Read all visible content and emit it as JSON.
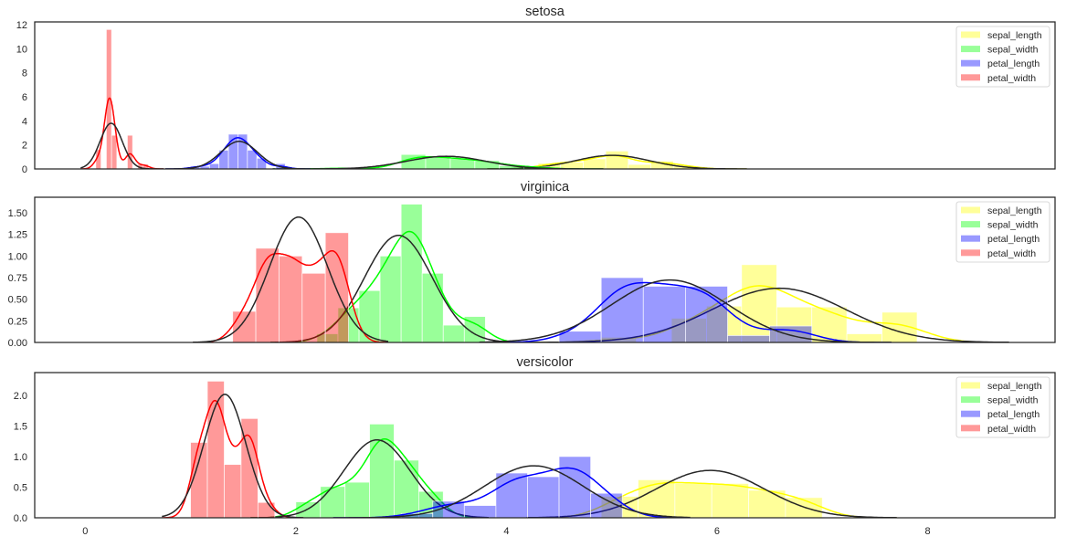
{
  "chart_data": [
    {
      "type": "bar",
      "title": "setosa",
      "xlim": [
        -0.48,
        9.21
      ],
      "ylim": [
        0,
        12.23
      ],
      "yticks": [
        0,
        2,
        4,
        6,
        8,
        10,
        12
      ],
      "ytick_labels": [
        "0",
        "2",
        "4",
        "6",
        "8",
        "10",
        "12"
      ],
      "xticks": [],
      "xtick_labels": [],
      "legend": "top-right",
      "grid": false,
      "series": [
        {
          "name": "sepal_length",
          "color": "#ffff00",
          "bin_edges": [
            4.3,
            4.514,
            4.729,
            4.943,
            5.157,
            5.371,
            5.586,
            5.8
          ],
          "density": [
            0.47,
            0.56,
            0.84,
            1.49,
            0.37,
            0.65,
            0.28
          ],
          "fit_mean": 5.006,
          "fit_std": 0.352
        },
        {
          "name": "sepal_width",
          "color": "#00ff00",
          "bin_edges": [
            2.3,
            2.533,
            2.767,
            3.0,
            3.233,
            3.467,
            3.7,
            3.933,
            4.167,
            4.4
          ],
          "density": [
            0.09,
            0,
            0.09,
            1.2,
            1.03,
            0.86,
            0.69,
            0.26,
            0.17
          ],
          "fit_mean": 3.428,
          "fit_std": 0.379
        },
        {
          "name": "petal_length",
          "color": "#0000ff",
          "bin_edges": [
            1.0,
            1.09,
            1.18,
            1.27,
            1.36,
            1.45,
            1.54,
            1.63,
            1.72,
            1.81,
            1.9
          ],
          "density": [
            0.22,
            0.22,
            0.44,
            1.56,
            2.89,
            2.89,
            1.56,
            0.89,
            0,
            0.44
          ],
          "fit_mean": 1.462,
          "fit_std": 0.174
        },
        {
          "name": "petal_width",
          "color": "#ff0000",
          "bin_edges": [
            0.1,
            0.15,
            0.2,
            0.25,
            0.3,
            0.35,
            0.4,
            0.45,
            0.5,
            0.55,
            0.6
          ],
          "density": [
            1.6,
            0,
            11.6,
            2.8,
            0,
            0,
            2.8,
            0,
            0.4,
            0.4
          ],
          "fit_mean": 0.246,
          "fit_std": 0.105
        }
      ]
    },
    {
      "type": "bar",
      "title": "virginica",
      "xlim": [
        -0.48,
        9.21
      ],
      "ylim": [
        0,
        1.68
      ],
      "yticks": [
        0,
        0.25,
        0.5,
        0.75,
        1.0,
        1.25,
        1.5
      ],
      "ytick_labels": [
        "0.00",
        "0.25",
        "0.50",
        "0.75",
        "1.00",
        "1.25",
        "1.50"
      ],
      "xticks": [],
      "xtick_labels": [],
      "legend": "top-right",
      "grid": false,
      "series": [
        {
          "name": "sepal_length",
          "color": "#ffff00",
          "bin_edges": [
            4.9,
            5.233,
            5.567,
            5.9,
            6.233,
            6.567,
            6.9,
            7.233,
            7.567,
            7.9
          ],
          "density": [
            0.06,
            0,
            0.28,
            0.42,
            0.9,
            0.41,
            0.41,
            0.1,
            0.35
          ],
          "fit_mean": 6.588,
          "fit_std": 0.636
        },
        {
          "name": "sepal_width",
          "color": "#00ff00",
          "bin_edges": [
            2.2,
            2.4,
            2.6,
            2.8,
            3.0,
            3.2,
            3.4,
            3.6,
            3.8
          ],
          "density": [
            0.1,
            0.4,
            0.6,
            1.0,
            1.6,
            0.8,
            0.2,
            0.3
          ],
          "fit_mean": 2.974,
          "fit_std": 0.322
        },
        {
          "name": "petal_length",
          "color": "#0000ff",
          "bin_edges": [
            4.5,
            4.9,
            5.3,
            5.7,
            6.1,
            6.5,
            6.9
          ],
          "density": [
            0.13,
            0.75,
            0.65,
            0.65,
            0.08,
            0.19
          ],
          "fit_mean": 5.552,
          "fit_std": 0.552
        },
        {
          "name": "petal_width",
          "color": "#ff0000",
          "bin_edges": [
            1.4,
            1.62,
            1.84,
            2.06,
            2.28,
            2.5
          ],
          "density": [
            0.36,
            1.09,
            1.0,
            0.8,
            1.27
          ],
          "fit_mean": 2.026,
          "fit_std": 0.275
        }
      ]
    },
    {
      "type": "bar",
      "title": "versicolor",
      "xlim": [
        -0.48,
        9.21
      ],
      "ylim": [
        0,
        2.37
      ],
      "yticks": [
        0,
        0.5,
        1.0,
        1.5,
        2.0
      ],
      "ytick_labels": [
        "0.0",
        "0.5",
        "1.0",
        "1.5",
        "2.0"
      ],
      "xticks": [
        0,
        2,
        4,
        6,
        8
      ],
      "xtick_labels": [
        "0",
        "2",
        "4",
        "6",
        "8"
      ],
      "legend": "top-right",
      "grid": false,
      "series": [
        {
          "name": "sepal_length",
          "color": "#ffff00",
          "bin_edges": [
            4.9,
            5.25,
            5.6,
            5.95,
            6.3,
            6.65,
            7.0
          ],
          "density": [
            0.35,
            0.62,
            0.56,
            0.56,
            0.45,
            0.33
          ],
          "fit_mean": 5.936,
          "fit_std": 0.516
        },
        {
          "name": "sepal_width",
          "color": "#00ff00",
          "bin_edges": [
            2.0,
            2.233,
            2.467,
            2.7,
            2.933,
            3.167,
            3.4
          ],
          "density": [
            0.26,
            0.51,
            0.58,
            1.53,
            0.94,
            0.43
          ],
          "fit_mean": 2.77,
          "fit_std": 0.314
        },
        {
          "name": "petal_length",
          "color": "#0000ff",
          "bin_edges": [
            3.0,
            3.3,
            3.6,
            3.9,
            4.2,
            4.5,
            4.8,
            5.1
          ],
          "density": [
            0.07,
            0.27,
            0.2,
            0.73,
            0.67,
            1.0,
            0.4
          ],
          "fit_mean": 4.26,
          "fit_std": 0.47
        },
        {
          "name": "petal_width",
          "color": "#ff0000",
          "bin_edges": [
            1.0,
            1.16,
            1.32,
            1.48,
            1.64,
            1.8
          ],
          "density": [
            1.23,
            2.23,
            0.87,
            1.62,
            0.25
          ],
          "fit_mean": 1.326,
          "fit_std": 0.198
        }
      ]
    }
  ]
}
